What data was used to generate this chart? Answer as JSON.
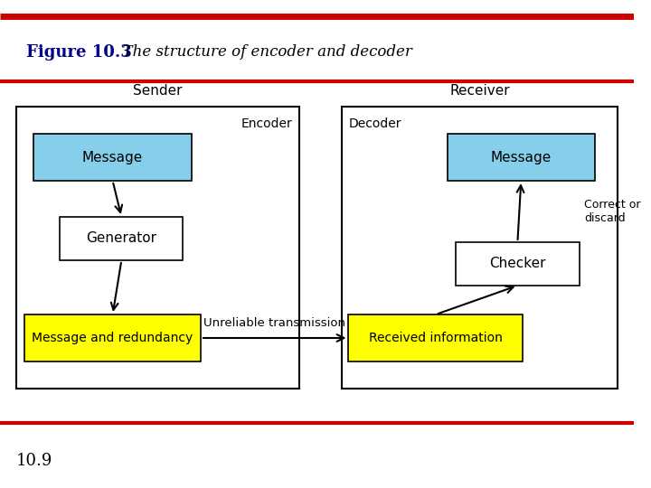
{
  "title_bold": "Figure 10.3",
  "title_italic": "  The structure of encoder and decoder",
  "footer_text": "10.9",
  "red_line_color": "#cc0000",
  "bg_color": "#ffffff",
  "cyan_box_color": "#87ceeb",
  "yellow_box_color": "#ffff00",
  "white_box_color": "#ffffff",
  "outer_box_color": "#000000",
  "sender_label": "Sender",
  "receiver_label": "Receiver",
  "encoder_label": "Encoder",
  "decoder_label": "Decoder",
  "left_message_label": "Message",
  "generator_label": "Generator",
  "msg_redundancy_label": "Message and redundancy",
  "right_message_label": "Message",
  "checker_label": "Checker",
  "received_info_label": "Received information",
  "transmission_label": "Unreliable transmission",
  "correct_discard_label": "Correct or\ndiscard"
}
